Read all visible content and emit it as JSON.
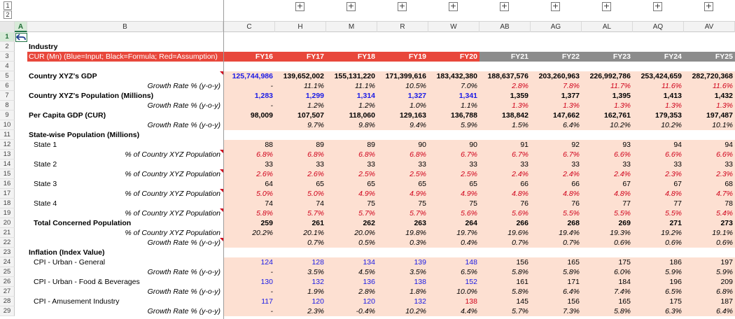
{
  "outline": {
    "levels": [
      "1",
      "2"
    ],
    "expand_symbol": "+"
  },
  "columns": {
    "headers": [
      "A",
      "B",
      "C",
      "H",
      "M",
      "R",
      "W",
      "AB",
      "AG",
      "AL",
      "AQ",
      "AV"
    ],
    "selected": "A"
  },
  "sheet": {
    "title_row": {
      "label": "Industry"
    },
    "header_row": {
      "label": "CUR (Mn) (Blue=Input; Black=Formula; Red=Assumption)",
      "years": [
        "FY16",
        "FY17",
        "FY18",
        "FY19",
        "FY20",
        "FY21",
        "FY22",
        "FY23",
        "FY24",
        "FY25"
      ]
    },
    "rows": [
      {
        "n": "1",
        "label": "",
        "style": "",
        "vals": []
      },
      {
        "n": "2",
        "label": "Industry",
        "style": "bold",
        "vals": []
      },
      {
        "n": "3",
        "label": "",
        "style": "header",
        "vals": []
      },
      {
        "n": "4",
        "label": "",
        "style": "",
        "vals": []
      },
      {
        "n": "5",
        "label": "Country XYZ's GDP",
        "style": "bold",
        "tri": true,
        "vals": [
          "125,744,986",
          "139,652,002",
          "155,131,220",
          "171,399,616",
          "183,432,380",
          "188,637,576",
          "203,260,963",
          "226,992,786",
          "253,424,659",
          "282,720,368"
        ],
        "colors": [
          "blue",
          "blk",
          "blk",
          "blk",
          "blk",
          "blk",
          "blk",
          "blk",
          "blk",
          "blk"
        ],
        "vbold": true
      },
      {
        "n": "6",
        "label": "Growth Rate % (y-o-y)",
        "style": "italic-right",
        "vals": [
          "-",
          "11.1%",
          "11.1%",
          "10.5%",
          "7.0%",
          "2.8%",
          "7.8%",
          "11.7%",
          "11.6%",
          "11.6%"
        ],
        "colors": [
          "blk",
          "blk",
          "blk",
          "blk",
          "blk",
          "red",
          "red",
          "red",
          "red",
          "red"
        ],
        "vitalic": true
      },
      {
        "n": "7",
        "label": "Country XYZ's Population (Millions)",
        "style": "bold",
        "vals": [
          "1,283",
          "1,299",
          "1,314",
          "1,327",
          "1,341",
          "1,359",
          "1,377",
          "1,395",
          "1,413",
          "1,432"
        ],
        "colors": [
          "blue",
          "blue",
          "blue",
          "blue",
          "blue",
          "blk",
          "blk",
          "blk",
          "blk",
          "blk"
        ],
        "vbold": true
      },
      {
        "n": "8",
        "label": "Growth Rate % (y-o-y)",
        "style": "italic-right",
        "vals": [
          "-",
          "1.2%",
          "1.2%",
          "1.0%",
          "1.1%",
          "1.3%",
          "1.3%",
          "1.3%",
          "1.3%",
          "1.3%"
        ],
        "colors": [
          "blk",
          "blk",
          "blk",
          "blk",
          "blk",
          "red",
          "red",
          "red",
          "red",
          "red"
        ],
        "vitalic": true
      },
      {
        "n": "9",
        "label": "Per Capita GDP (CUR)",
        "style": "bold",
        "vals": [
          "98,009",
          "107,507",
          "118,060",
          "129,163",
          "136,788",
          "138,842",
          "147,662",
          "162,761",
          "179,353",
          "197,487"
        ],
        "colors": [
          "blk",
          "blk",
          "blk",
          "blk",
          "blk",
          "blk",
          "blk",
          "blk",
          "blk",
          "blk"
        ],
        "vbold": true
      },
      {
        "n": "10",
        "label": "Growth Rate % (y-o-y)",
        "style": "italic-right",
        "vals": [
          "",
          "9.7%",
          "9.8%",
          "9.4%",
          "5.9%",
          "1.5%",
          "6.4%",
          "10.2%",
          "10.2%",
          "10.1%"
        ],
        "colors": [
          "blk",
          "blk",
          "blk",
          "blk",
          "blk",
          "blk",
          "blk",
          "blk",
          "blk",
          "blk"
        ],
        "vitalic": true
      },
      {
        "n": "11",
        "label": "State-wise Population (Millions)",
        "style": "bold",
        "vals": []
      },
      {
        "n": "12",
        "label": "State 1",
        "style": "indent",
        "vals": [
          "88",
          "89",
          "89",
          "90",
          "90",
          "91",
          "92",
          "93",
          "94",
          "94"
        ],
        "colors": [
          "blk",
          "blk",
          "blk",
          "blk",
          "blk",
          "blk",
          "blk",
          "blk",
          "blk",
          "blk"
        ]
      },
      {
        "n": "13",
        "label": "% of Country XYZ Population",
        "style": "italic-right",
        "tri": true,
        "vals": [
          "6.8%",
          "6.8%",
          "6.8%",
          "6.8%",
          "6.7%",
          "6.7%",
          "6.7%",
          "6.6%",
          "6.6%",
          "6.6%"
        ],
        "colors": [
          "red",
          "red",
          "red",
          "red",
          "red",
          "red",
          "red",
          "red",
          "red",
          "red"
        ],
        "vitalic": true
      },
      {
        "n": "14",
        "label": "State 2",
        "style": "indent",
        "vals": [
          "33",
          "33",
          "33",
          "33",
          "33",
          "33",
          "33",
          "33",
          "33",
          "33"
        ],
        "colors": [
          "blk",
          "blk",
          "blk",
          "blk",
          "blk",
          "blk",
          "blk",
          "blk",
          "blk",
          "blk"
        ]
      },
      {
        "n": "15",
        "label": "% of Country XYZ Population",
        "style": "italic-right",
        "tri": true,
        "vals": [
          "2.6%",
          "2.6%",
          "2.5%",
          "2.5%",
          "2.5%",
          "2.4%",
          "2.4%",
          "2.4%",
          "2.3%",
          "2.3%"
        ],
        "colors": [
          "red",
          "red",
          "red",
          "red",
          "red",
          "red",
          "red",
          "red",
          "red",
          "red"
        ],
        "vitalic": true
      },
      {
        "n": "16",
        "label": "State 3",
        "style": "indent",
        "vals": [
          "64",
          "65",
          "65",
          "65",
          "65",
          "66",
          "66",
          "67",
          "67",
          "68"
        ],
        "colors": [
          "blk",
          "blk",
          "blk",
          "blk",
          "blk",
          "blk",
          "blk",
          "blk",
          "blk",
          "blk"
        ]
      },
      {
        "n": "17",
        "label": "% of Country XYZ Population",
        "style": "italic-right",
        "tri": true,
        "vals": [
          "5.0%",
          "5.0%",
          "4.9%",
          "4.9%",
          "4.9%",
          "4.8%",
          "4.8%",
          "4.8%",
          "4.8%",
          "4.7%"
        ],
        "colors": [
          "red",
          "red",
          "red",
          "red",
          "red",
          "red",
          "red",
          "red",
          "red",
          "red"
        ],
        "vitalic": true
      },
      {
        "n": "18",
        "label": "State 4",
        "style": "indent",
        "vals": [
          "74",
          "74",
          "75",
          "75",
          "75",
          "76",
          "76",
          "77",
          "77",
          "78"
        ],
        "colors": [
          "blk",
          "blk",
          "blk",
          "blk",
          "blk",
          "blk",
          "blk",
          "blk",
          "blk",
          "blk"
        ]
      },
      {
        "n": "19",
        "label": "% of Country XYZ Population",
        "style": "italic-right",
        "tri": true,
        "vals": [
          "5.8%",
          "5.7%",
          "5.7%",
          "5.7%",
          "5.6%",
          "5.6%",
          "5.5%",
          "5.5%",
          "5.5%",
          "5.4%"
        ],
        "colors": [
          "red",
          "red",
          "red",
          "red",
          "red",
          "red",
          "red",
          "red",
          "red",
          "red"
        ],
        "vitalic": true
      },
      {
        "n": "20",
        "label": "Total Concerned Population",
        "style": "bold-indent",
        "vals": [
          "259",
          "261",
          "262",
          "263",
          "264",
          "266",
          "268",
          "269",
          "271",
          "273"
        ],
        "colors": [
          "blk",
          "blk",
          "blk",
          "blk",
          "blk",
          "blk",
          "blk",
          "blk",
          "blk",
          "blk"
        ],
        "vbold": true
      },
      {
        "n": "21",
        "label": "% of Country XYZ Population",
        "style": "italic-right",
        "vals": [
          "20.2%",
          "20.1%",
          "20.0%",
          "19.8%",
          "19.7%",
          "19.6%",
          "19.4%",
          "19.3%",
          "19.2%",
          "19.1%"
        ],
        "colors": [
          "blk",
          "blk",
          "blk",
          "blk",
          "blk",
          "blk",
          "blk",
          "blk",
          "blk",
          "blk"
        ],
        "vitalic": true
      },
      {
        "n": "22",
        "label": "Growth Rate % (y-o-y)",
        "style": "italic-right",
        "tri": true,
        "vals": [
          "",
          "0.7%",
          "0.5%",
          "0.3%",
          "0.4%",
          "0.7%",
          "0.7%",
          "0.6%",
          "0.6%",
          "0.6%"
        ],
        "colors": [
          "blk",
          "blk",
          "blk",
          "blk",
          "blk",
          "blk",
          "blk",
          "blk",
          "blk",
          "blk"
        ],
        "vitalic": true
      },
      {
        "n": "23",
        "label": "Inflation (Index Value)",
        "style": "bold",
        "vals": []
      },
      {
        "n": "24",
        "label": "CPI - Urban - General",
        "style": "indent",
        "vals": [
          "124",
          "128",
          "134",
          "139",
          "148",
          "156",
          "165",
          "175",
          "186",
          "197"
        ],
        "colors": [
          "blue",
          "blue",
          "blue",
          "blue",
          "blue",
          "blk",
          "blk",
          "blk",
          "blk",
          "blk"
        ]
      },
      {
        "n": "25",
        "label": "Growth Rate % (y-o-y)",
        "style": "italic-right",
        "vals": [
          "-",
          "3.5%",
          "4.5%",
          "3.5%",
          "6.5%",
          "5.8%",
          "5.8%",
          "6.0%",
          "5.9%",
          "5.9%"
        ],
        "colors": [
          "blk",
          "blk",
          "blk",
          "blk",
          "blk",
          "blk",
          "blk",
          "blk",
          "blk",
          "blk"
        ],
        "vitalic": true
      },
      {
        "n": "26",
        "label": "CPI - Urban - Food & Beverages",
        "style": "indent",
        "vals": [
          "130",
          "132",
          "136",
          "138",
          "152",
          "161",
          "171",
          "184",
          "196",
          "209"
        ],
        "colors": [
          "blue",
          "blue",
          "blue",
          "blue",
          "blue",
          "blk",
          "blk",
          "blk",
          "blk",
          "blk"
        ]
      },
      {
        "n": "27",
        "label": "Growth Rate % (y-o-y)",
        "style": "italic-right",
        "vals": [
          "-",
          "1.9%",
          "2.8%",
          "1.8%",
          "10.0%",
          "5.8%",
          "6.4%",
          "7.4%",
          "6.5%",
          "6.8%"
        ],
        "colors": [
          "blk",
          "blk",
          "blk",
          "blk",
          "blk",
          "blk",
          "blk",
          "blk",
          "blk",
          "blk"
        ],
        "vitalic": true
      },
      {
        "n": "28",
        "label": "CPI - Amusement Industry",
        "style": "indent",
        "vals": [
          "117",
          "120",
          "120",
          "132",
          "138",
          "145",
          "156",
          "165",
          "175",
          "187"
        ],
        "colors": [
          "blue",
          "blue",
          "blue",
          "blue",
          "red",
          "blk",
          "blk",
          "blk",
          "blk",
          "blk"
        ]
      },
      {
        "n": "29",
        "label": "Growth Rate % (y-o-y)",
        "style": "italic-right",
        "vals": [
          "-",
          "2.3%",
          "-0.4%",
          "10.2%",
          "4.4%",
          "5.7%",
          "7.3%",
          "5.8%",
          "6.3%",
          "6.4%"
        ],
        "colors": [
          "blk",
          "blk",
          "blk",
          "blk",
          "blk",
          "blk",
          "blk",
          "blk",
          "blk",
          "blk"
        ],
        "vitalic": true
      }
    ]
  }
}
